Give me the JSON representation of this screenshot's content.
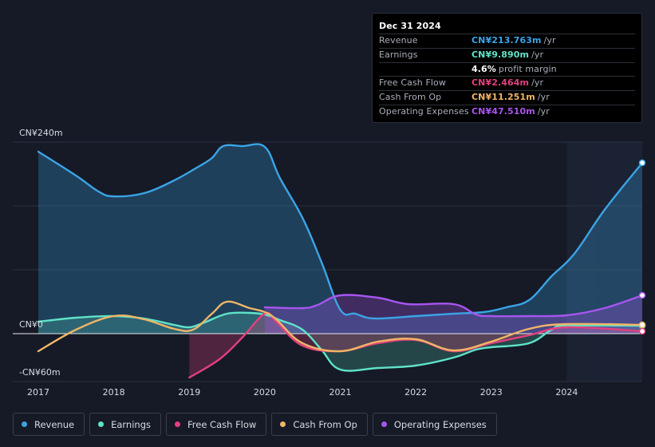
{
  "tooltip": {
    "date": "Dec 31 2024",
    "rows": [
      {
        "label": "Revenue",
        "value": "CN¥213.763m",
        "unit": "/yr",
        "color": "#3ba4e6"
      },
      {
        "label": "Earnings",
        "value": "CN¥9.890m",
        "unit": "/yr",
        "color": "#5fe3c9"
      },
      {
        "label": "",
        "value": "4.6%",
        "unit": "profit margin",
        "color": "#ffffff"
      },
      {
        "label": "Free Cash Flow",
        "value": "CN¥2.464m",
        "unit": "/yr",
        "color": "#e2407f"
      },
      {
        "label": "Cash From Op",
        "value": "CN¥11.251m",
        "unit": "/yr",
        "color": "#f0b566"
      },
      {
        "label": "Operating Expenses",
        "value": "CN¥47.510m",
        "unit": "/yr",
        "color": "#a855f0"
      }
    ]
  },
  "legend": [
    {
      "label": "Revenue",
      "color": "#3ba4e6"
    },
    {
      "label": "Earnings",
      "color": "#5fe3c9"
    },
    {
      "label": "Free Cash Flow",
      "color": "#e2407f"
    },
    {
      "label": "Cash From Op",
      "color": "#f0b566"
    },
    {
      "label": "Operating Expenses",
      "color": "#a855f0"
    }
  ],
  "chart_data": {
    "type": "line",
    "title": "",
    "xlabel": "",
    "ylabel": "",
    "currency_unit": "CN¥ millions",
    "x_range": [
      2017.0,
      2025.0
    ],
    "ylim": [
      -60,
      240
    ],
    "y_tick_labels": [
      {
        "value": 240,
        "label": "CN¥240m"
      },
      {
        "value": 0,
        "label": "CN¥0"
      },
      {
        "value": -60,
        "label": "-CN¥60m"
      }
    ],
    "x_tick_labels": [
      {
        "value": 2017,
        "label": "2017"
      },
      {
        "value": 2018,
        "label": "2018"
      },
      {
        "value": 2019,
        "label": "2019"
      },
      {
        "value": 2020,
        "label": "2020"
      },
      {
        "value": 2021,
        "label": "2021"
      },
      {
        "value": 2022,
        "label": "2022"
      },
      {
        "value": 2023,
        "label": "2023"
      },
      {
        "value": 2024,
        "label": "2024"
      }
    ],
    "highlight_start": 2024.0,
    "series": [
      {
        "name": "Revenue",
        "color": "#3ba4e6",
        "fill": true,
        "points": [
          [
            2017.0,
            228
          ],
          [
            2017.5,
            198
          ],
          [
            2017.8,
            178
          ],
          [
            2018.0,
            172
          ],
          [
            2018.4,
            176
          ],
          [
            2018.8,
            192
          ],
          [
            2019.1,
            208
          ],
          [
            2019.3,
            220
          ],
          [
            2019.45,
            235
          ],
          [
            2019.7,
            235
          ],
          [
            2020.0,
            234
          ],
          [
            2020.2,
            195
          ],
          [
            2020.5,
            145
          ],
          [
            2020.75,
            90
          ],
          [
            2021.0,
            30
          ],
          [
            2021.2,
            25
          ],
          [
            2021.45,
            19
          ],
          [
            2022.0,
            22
          ],
          [
            2022.5,
            25
          ],
          [
            2022.9,
            27
          ],
          [
            2023.2,
            33
          ],
          [
            2023.5,
            42
          ],
          [
            2023.8,
            72
          ],
          [
            2024.1,
            100
          ],
          [
            2024.5,
            155
          ],
          [
            2025.0,
            214
          ]
        ]
      },
      {
        "name": "Earnings",
        "color": "#5fe3c9",
        "fill": true,
        "points": [
          [
            2017.0,
            15
          ],
          [
            2017.5,
            20
          ],
          [
            2018.0,
            22
          ],
          [
            2018.4,
            19
          ],
          [
            2018.8,
            11
          ],
          [
            2019.0,
            8
          ],
          [
            2019.2,
            14
          ],
          [
            2019.5,
            25
          ],
          [
            2019.8,
            26
          ],
          [
            2020.0,
            24
          ],
          [
            2020.2,
            17
          ],
          [
            2020.5,
            5
          ],
          [
            2020.75,
            -20
          ],
          [
            2021.0,
            -45
          ],
          [
            2021.5,
            -43
          ],
          [
            2022.0,
            -40
          ],
          [
            2022.5,
            -30
          ],
          [
            2022.8,
            -20
          ],
          [
            2023.0,
            -17
          ],
          [
            2023.5,
            -12
          ],
          [
            2023.8,
            5
          ],
          [
            2024.0,
            10
          ],
          [
            2025.0,
            10
          ]
        ]
      },
      {
        "name": "Free Cash Flow",
        "color": "#e2407f",
        "fill": true,
        "points": [
          [
            2019.0,
            -55
          ],
          [
            2019.4,
            -32
          ],
          [
            2019.7,
            -5
          ],
          [
            2020.0,
            25
          ],
          [
            2020.15,
            15
          ],
          [
            2020.5,
            -15
          ],
          [
            2021.0,
            -22
          ],
          [
            2021.5,
            -12
          ],
          [
            2022.0,
            -8
          ],
          [
            2022.5,
            -22
          ],
          [
            2023.0,
            -12
          ],
          [
            2023.5,
            -2
          ],
          [
            2024.0,
            8
          ],
          [
            2025.0,
            3
          ]
        ]
      },
      {
        "name": "Cash From Op",
        "color": "#f0b566",
        "fill": false,
        "points": [
          [
            2017.0,
            -22
          ],
          [
            2017.5,
            5
          ],
          [
            2018.0,
            22
          ],
          [
            2018.4,
            18
          ],
          [
            2018.8,
            6
          ],
          [
            2019.05,
            5
          ],
          [
            2019.3,
            25
          ],
          [
            2019.5,
            40
          ],
          [
            2019.8,
            32
          ],
          [
            2020.0,
            27
          ],
          [
            2020.15,
            18
          ],
          [
            2020.5,
            -12
          ],
          [
            2021.0,
            -22
          ],
          [
            2021.5,
            -10
          ],
          [
            2022.0,
            -7
          ],
          [
            2022.5,
            -21
          ],
          [
            2023.0,
            -10
          ],
          [
            2023.5,
            6
          ],
          [
            2024.0,
            12
          ],
          [
            2025.0,
            11
          ]
        ]
      },
      {
        "name": "Operating Expenses",
        "color": "#a855f0",
        "fill": true,
        "points": [
          [
            2020.0,
            33
          ],
          [
            2020.5,
            32
          ],
          [
            2020.7,
            36
          ],
          [
            2021.0,
            48
          ],
          [
            2021.5,
            45
          ],
          [
            2021.9,
            37
          ],
          [
            2022.5,
            37
          ],
          [
            2022.8,
            24
          ],
          [
            2023.0,
            22
          ],
          [
            2023.5,
            22
          ],
          [
            2024.0,
            23
          ],
          [
            2024.5,
            32
          ],
          [
            2025.0,
            48
          ]
        ]
      }
    ]
  }
}
